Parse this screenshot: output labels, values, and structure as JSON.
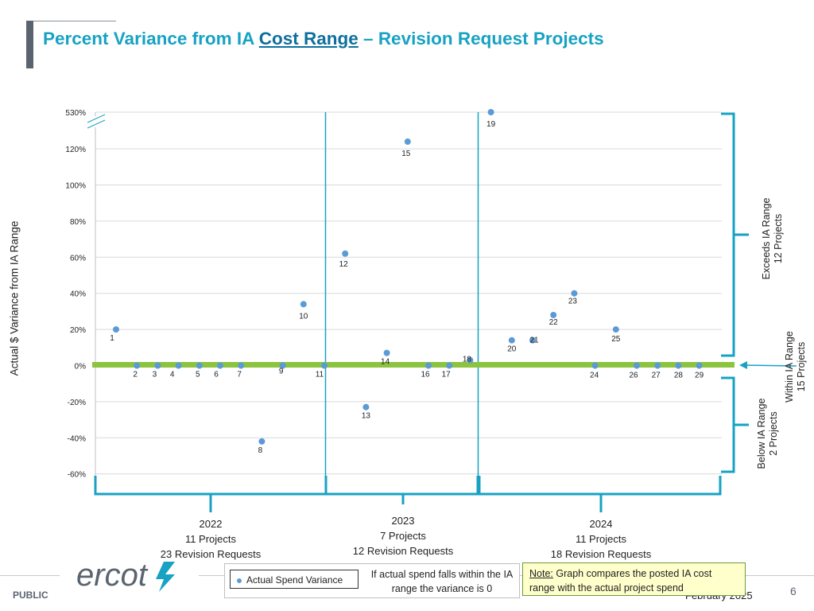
{
  "title": {
    "prefix": "Percent Variance from IA ",
    "underlined": "Cost Range",
    "suffix": " – Revision Request Projects"
  },
  "footer": {
    "public_label": "PUBLIC",
    "logo_text": "ercot",
    "legend_label": "Actual Spend Variance",
    "legend_note": "If actual spend falls within the IA range the variance is 0",
    "note_head": "Note:",
    "note_text": " Graph compares the posted IA cost range with the actual project spend",
    "date": "February 2025",
    "page_number": "6"
  },
  "chart_data": {
    "type": "scatter",
    "title": "Percent Variance from IA Cost Range – Revision Request Projects",
    "ylabel": "Actual $ Variance from IA Range",
    "y_tick_labels": [
      "530%",
      "120%",
      "100%",
      "80%",
      "60%",
      "40%",
      "20%",
      "0%",
      "-20%",
      "-40%",
      "-60%"
    ],
    "y_tick_values": [
      530,
      120,
      100,
      80,
      60,
      40,
      20,
      0,
      -20,
      -40,
      -60
    ],
    "axis_break": "between 120% and 530%",
    "colors": {
      "point": "#5b9bd5",
      "zero_band": "#8cc43f",
      "bracket": "#17a2c3",
      "grid": "#d9d9d9"
    },
    "series": [
      {
        "name": "Actual Spend Variance",
        "points": [
          {
            "label": "1",
            "y": 20
          },
          {
            "label": "2",
            "y": 0
          },
          {
            "label": "3",
            "y": 0
          },
          {
            "label": "4",
            "y": 0
          },
          {
            "label": "5",
            "y": 0
          },
          {
            "label": "6",
            "y": 0
          },
          {
            "label": "7",
            "y": 0
          },
          {
            "label": "8",
            "y": -42
          },
          {
            "label": "9",
            "y": 0
          },
          {
            "label": "10",
            "y": 34
          },
          {
            "label": "11",
            "y": 0
          },
          {
            "label": "12",
            "y": 62
          },
          {
            "label": "13",
            "y": -23
          },
          {
            "label": "14",
            "y": 7
          },
          {
            "label": "15",
            "y": 124
          },
          {
            "label": "16",
            "y": 0
          },
          {
            "label": "17",
            "y": 0
          },
          {
            "label": "18",
            "y": 3
          },
          {
            "label": "19",
            "y": 530
          },
          {
            "label": "20",
            "y": 14
          },
          {
            "label": "21",
            "y": 14
          },
          {
            "label": "22",
            "y": 28
          },
          {
            "label": "23",
            "y": 40
          },
          {
            "label": "24",
            "y": 0
          },
          {
            "label": "25",
            "y": 20
          },
          {
            "label": "26",
            "y": 0
          },
          {
            "label": "27",
            "y": 0
          },
          {
            "label": "28",
            "y": 0
          },
          {
            "label": "29",
            "y": 0
          }
        ]
      }
    ],
    "groups": [
      {
        "year": "2022",
        "projects": "11 Projects",
        "requests": "23 Revision Requests",
        "first": 1,
        "last": 11
      },
      {
        "year": "2023",
        "projects": "7 Projects",
        "requests": "12 Revision Requests",
        "first": 12,
        "last": 18
      },
      {
        "year": "2024",
        "projects": "11 Projects",
        "requests": "18 Revision Requests",
        "first": 19,
        "last": 29
      }
    ],
    "side_brackets": [
      {
        "name": "Exceeds IA Range",
        "count": "12 Projects"
      },
      {
        "name": "Within IA Range",
        "count": "15 Projects"
      },
      {
        "name": "Below IA Range",
        "count": "2 Projects"
      }
    ]
  }
}
